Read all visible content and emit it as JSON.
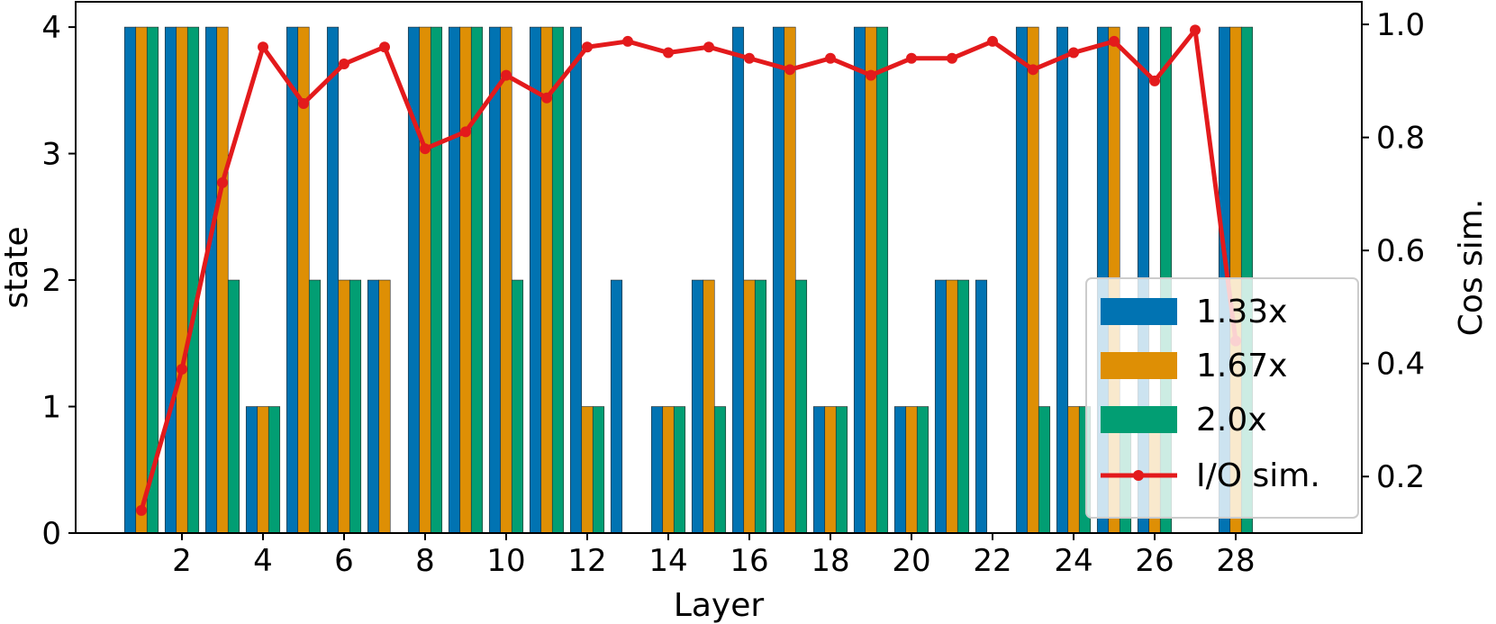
{
  "chart_data": {
    "type": "bar",
    "x": [
      1,
      2,
      3,
      4,
      5,
      6,
      7,
      8,
      9,
      10,
      11,
      12,
      13,
      14,
      15,
      16,
      17,
      18,
      19,
      20,
      21,
      22,
      23,
      24,
      25,
      26,
      27,
      28
    ],
    "xticks": [
      "2",
      "4",
      "6",
      "8",
      "10",
      "12",
      "14",
      "16",
      "18",
      "20",
      "22",
      "24",
      "26",
      "28"
    ],
    "xtick_values": [
      2,
      4,
      6,
      8,
      10,
      12,
      14,
      16,
      18,
      20,
      22,
      24,
      26,
      28
    ],
    "xlabel": "Layer",
    "ylabel": "state",
    "ylabel_right": "Cos sim.",
    "ylim": [
      0,
      4.2
    ],
    "yticks": [
      "0",
      "1",
      "2",
      "3",
      "4"
    ],
    "yright_lim": [
      0.1,
      1.04
    ],
    "yright_ticks": [
      "0.2",
      "0.4",
      "0.6",
      "0.8",
      "1.0"
    ],
    "series": [
      {
        "name": "1.33x",
        "color": "#0173b2",
        "values": [
          4,
          4,
          4,
          1,
          4,
          4,
          2,
          4,
          4,
          4,
          4,
          4,
          2,
          1,
          2,
          4,
          4,
          1,
          4,
          1,
          2,
          2,
          4,
          4,
          4,
          4,
          0,
          4
        ]
      },
      {
        "name": "1.67x",
        "color": "#de8f05",
        "values": [
          4,
          4,
          4,
          1,
          4,
          2,
          2,
          4,
          4,
          4,
          4,
          1,
          0,
          1,
          2,
          2,
          4,
          1,
          4,
          1,
          2,
          0,
          4,
          1,
          4,
          1,
          0,
          4
        ]
      },
      {
        "name": "2.0x",
        "color": "#029e73",
        "values": [
          4,
          4,
          2,
          1,
          2,
          2,
          0,
          4,
          4,
          2,
          4,
          1,
          0,
          1,
          1,
          2,
          2,
          1,
          4,
          1,
          2,
          0,
          1,
          1,
          1,
          4,
          0,
          4
        ]
      }
    ],
    "line_series": {
      "name": "I/O sim.",
      "color": "#e31a1c",
      "axis": "right",
      "values": [
        0.14,
        0.39,
        0.72,
        0.96,
        0.86,
        0.93,
        0.96,
        0.78,
        0.81,
        0.91,
        0.87,
        0.96,
        0.97,
        0.95,
        0.96,
        0.94,
        0.92,
        0.94,
        0.91,
        0.94,
        0.94,
        0.97,
        0.92,
        0.95,
        0.97,
        0.9,
        0.99,
        0.44
      ]
    },
    "legend": {
      "placement": "lower-right",
      "entries": [
        "1.33x",
        "1.67x",
        "2.0x",
        "I/O sim."
      ]
    },
    "grid": false
  }
}
